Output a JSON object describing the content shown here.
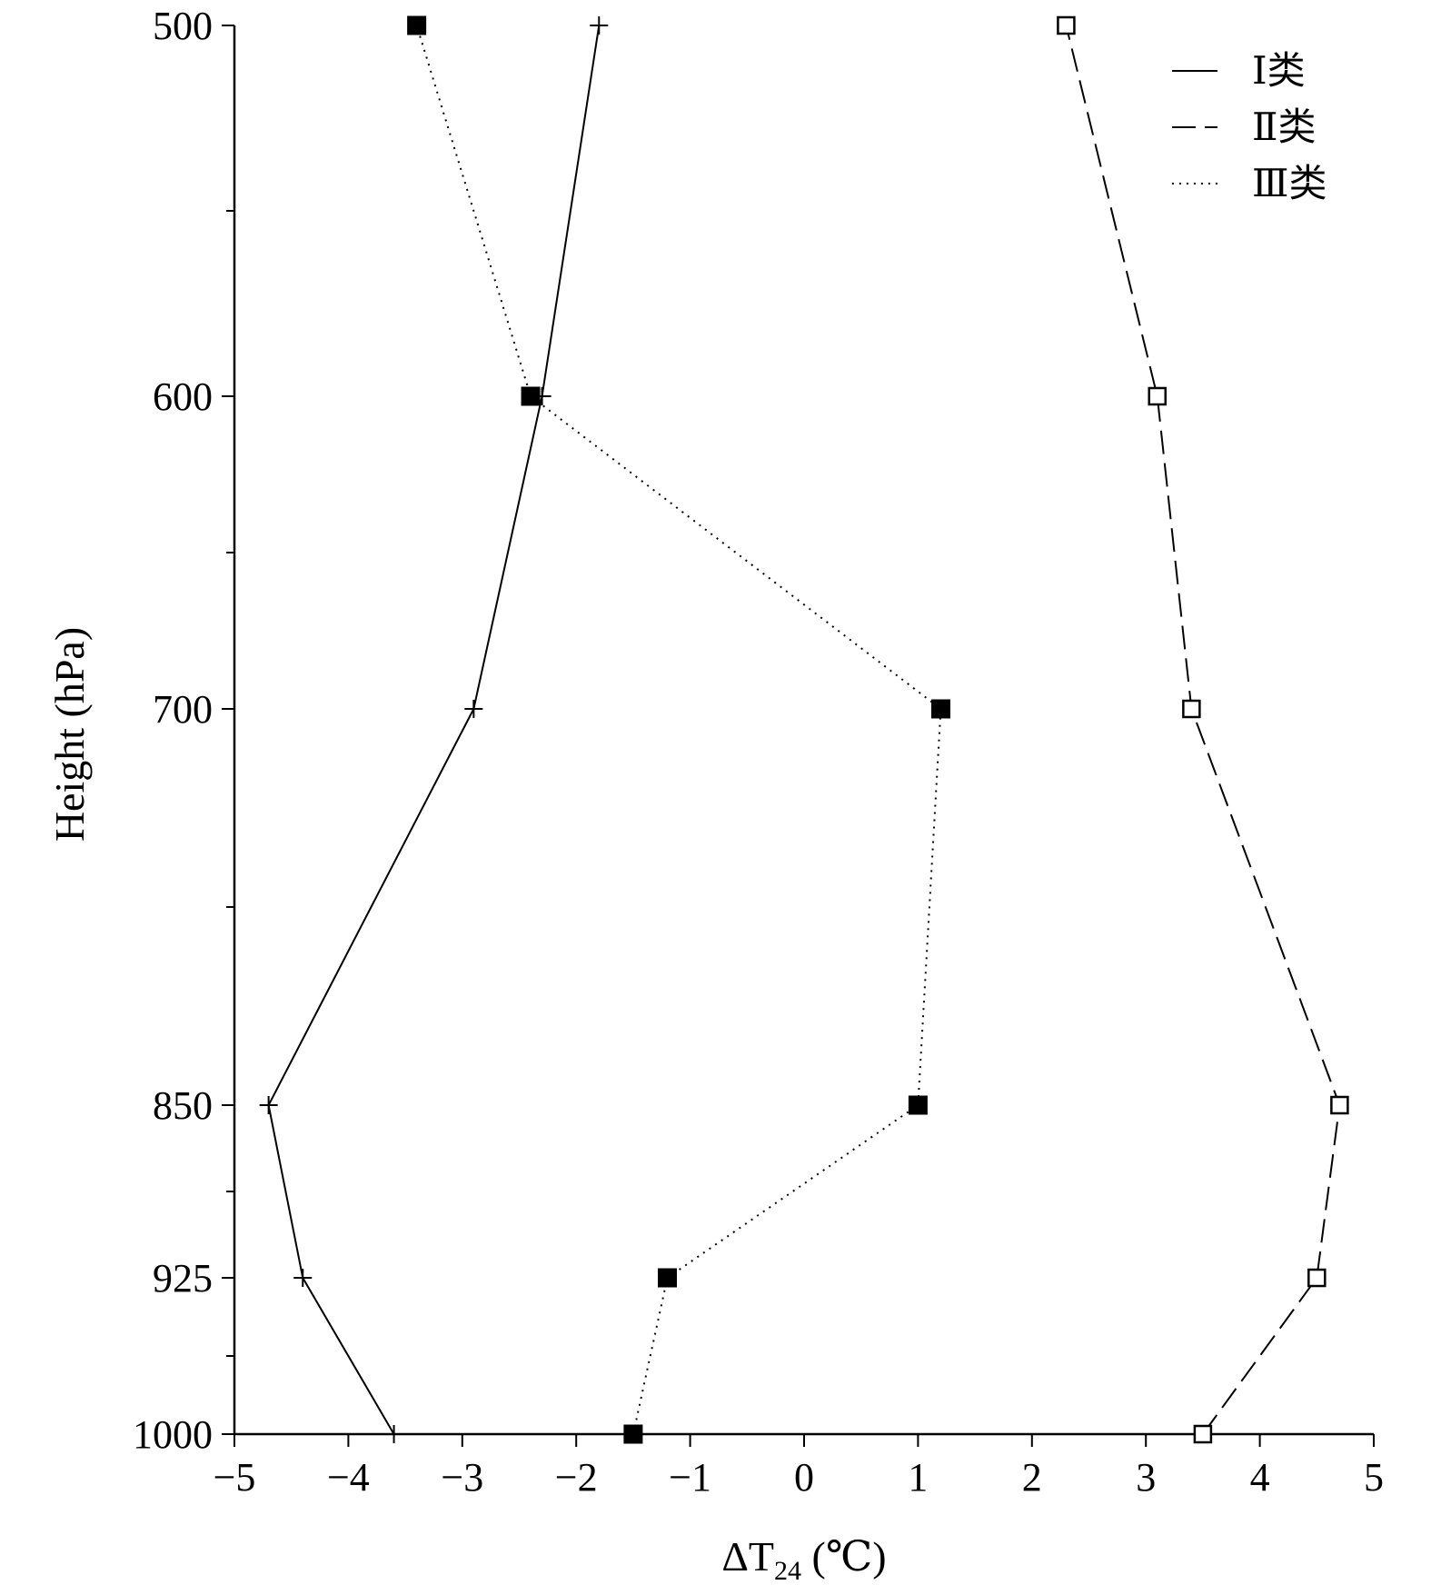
{
  "chart_data": {
    "type": "line",
    "orientation": "profile",
    "xlabel": "ΔT24 (℃)",
    "xlabel_parts": {
      "main": "ΔT",
      "subscript": "24",
      "unit": " (℃)"
    },
    "ylabel": "Height (hPa)",
    "xlim": [
      -5,
      5
    ],
    "ylim": [
      500,
      1000
    ],
    "y_inverted": true,
    "y_scale": "nonlinear-pressure",
    "xticks": [
      -5,
      -4,
      -3,
      -2,
      -1,
      0,
      1,
      2,
      3,
      4,
      5
    ],
    "xtick_labels": [
      "−5",
      "−4",
      "−3",
      "−2",
      "−1",
      "0",
      "1",
      "2",
      "3",
      "4",
      "5"
    ],
    "yticks": [
      500,
      600,
      700,
      850,
      925,
      1000
    ],
    "ytick_labels": [
      "500",
      "600",
      "700",
      "850",
      "925",
      "1000"
    ],
    "grid": false,
    "legend_position": "top-right",
    "series": [
      {
        "name": "Ⅰ类",
        "line_style": "solid",
        "marker": "plus",
        "points": [
          {
            "x": -3.6,
            "y": 1000
          },
          {
            "x": -4.4,
            "y": 925
          },
          {
            "x": -4.7,
            "y": 850
          },
          {
            "x": -2.9,
            "y": 700
          },
          {
            "x": -2.3,
            "y": 600
          },
          {
            "x": -1.8,
            "y": 500
          }
        ]
      },
      {
        "name": "Ⅱ类",
        "line_style": "dashed",
        "marker": "open-square",
        "points": [
          {
            "x": 3.5,
            "y": 1000
          },
          {
            "x": 4.5,
            "y": 925
          },
          {
            "x": 4.7,
            "y": 850
          },
          {
            "x": 3.4,
            "y": 700
          },
          {
            "x": 3.1,
            "y": 600
          },
          {
            "x": 2.3,
            "y": 500
          }
        ]
      },
      {
        "name": "Ⅲ类",
        "line_style": "dotted",
        "marker": "filled-square",
        "points": [
          {
            "x": -1.5,
            "y": 1000
          },
          {
            "x": -1.2,
            "y": 925
          },
          {
            "x": 1.0,
            "y": 850
          },
          {
            "x": 1.2,
            "y": 700
          },
          {
            "x": -2.4,
            "y": 600
          },
          {
            "x": -3.4,
            "y": 500
          }
        ]
      }
    ]
  }
}
